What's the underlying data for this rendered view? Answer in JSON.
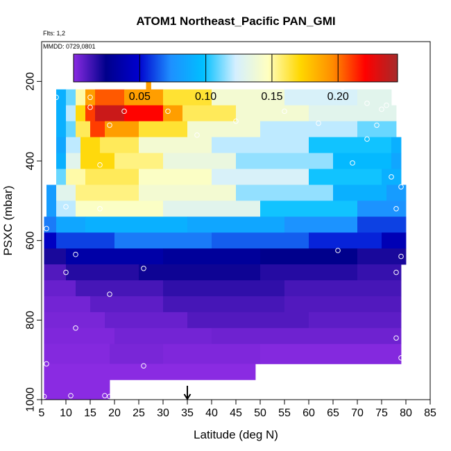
{
  "chart_data": {
    "type": "heatmap",
    "title": "ATOM1 Northeast_Pacific PAN_GMI",
    "annotations": [
      "Flts: 1,2",
      "MMDD: 0729,0801"
    ],
    "xlabel": "Latitude (deg N)",
    "ylabel": "PSXC (mbar)",
    "xlim": [
      5,
      85
    ],
    "ylim": [
      1000,
      100
    ],
    "xticks": [
      "5",
      "10",
      "15",
      "20",
      "25",
      "30",
      "35",
      "40",
      "45",
      "50",
      "55",
      "60",
      "65",
      "70",
      "75",
      "80",
      "85"
    ],
    "yticks": [
      "200",
      "400",
      "600",
      "800",
      "1000"
    ],
    "colorbar": {
      "range": [
        0.0,
        0.245
      ],
      "ticks": [
        "0.05",
        "0.10",
        "0.15",
        "0.20"
      ],
      "colors": [
        "#8a2be2",
        "#00008b",
        "#0000cd",
        "#1e90ff",
        "#00bfff",
        "#d4efff",
        "#ffffc0",
        "#ffd700",
        "#ff8c00",
        "#ff0000",
        "#a52a2a"
      ]
    },
    "marker": {
      "latitude": 35,
      "symbol": "down-arrow"
    },
    "rows": [
      {
        "p_top": 165,
        "p_bot": 180,
        "segments": [
          [
            26.5,
            27.5,
            0.19
          ]
        ]
      },
      {
        "p_top": 180,
        "p_bot": 220,
        "segments": [
          [
            26.5,
            27.5,
            0.19
          ]
        ]
      },
      {
        "p_top": 220,
        "p_bot": 260,
        "segments": [
          [
            8,
            10,
            0.09
          ],
          [
            10,
            12,
            0.11
          ],
          [
            12,
            14,
            0.15
          ],
          [
            14,
            16,
            0.19
          ],
          [
            16,
            22,
            0.205
          ],
          [
            22,
            30,
            0.19
          ],
          [
            30,
            40,
            0.165
          ],
          [
            40,
            55,
            0.14
          ],
          [
            55,
            70,
            0.125
          ],
          [
            70,
            77,
            0.13
          ]
        ]
      },
      {
        "p_top": 260,
        "p_bot": 300,
        "segments": [
          [
            8,
            10,
            0.09
          ],
          [
            10,
            12,
            0.12
          ],
          [
            12,
            14,
            0.17
          ],
          [
            14,
            16,
            0.21
          ],
          [
            16,
            22,
            0.235
          ],
          [
            22,
            30,
            0.22
          ],
          [
            30,
            34,
            0.19
          ],
          [
            34,
            45,
            0.16
          ],
          [
            45,
            60,
            0.14
          ],
          [
            60,
            78,
            0.13
          ]
        ]
      },
      {
        "p_top": 300,
        "p_bot": 340,
        "segments": [
          [
            8,
            10,
            0.09
          ],
          [
            10,
            12,
            0.11
          ],
          [
            12,
            15,
            0.16
          ],
          [
            15,
            18,
            0.21
          ],
          [
            18,
            25,
            0.19
          ],
          [
            25,
            35,
            0.165
          ],
          [
            35,
            50,
            0.14
          ],
          [
            50,
            70,
            0.12
          ],
          [
            70,
            78,
            0.11
          ]
        ]
      },
      {
        "p_top": 340,
        "p_bot": 380,
        "segments": [
          [
            8,
            10,
            0.085
          ],
          [
            10,
            13,
            0.12
          ],
          [
            13,
            17,
            0.17
          ],
          [
            17,
            25,
            0.16
          ],
          [
            25,
            40,
            0.14
          ],
          [
            40,
            60,
            0.12
          ],
          [
            60,
            77,
            0.1
          ],
          [
            77,
            79,
            0.09
          ]
        ]
      },
      {
        "p_top": 380,
        "p_bot": 420,
        "segments": [
          [
            8,
            10,
            0.09
          ],
          [
            10,
            13,
            0.13
          ],
          [
            13,
            20,
            0.17
          ],
          [
            20,
            30,
            0.155
          ],
          [
            30,
            45,
            0.135
          ],
          [
            45,
            65,
            0.115
          ],
          [
            65,
            77,
            0.095
          ],
          [
            77,
            79,
            0.085
          ]
        ]
      },
      {
        "p_top": 420,
        "p_bot": 460,
        "segments": [
          [
            8,
            10,
            0.11
          ],
          [
            10,
            14,
            0.15
          ],
          [
            14,
            25,
            0.16
          ],
          [
            25,
            40,
            0.145
          ],
          [
            40,
            60,
            0.125
          ],
          [
            60,
            75,
            0.1
          ],
          [
            75,
            79,
            0.09
          ]
        ]
      },
      {
        "p_top": 460,
        "p_bot": 500,
        "segments": [
          [
            6,
            8,
            0.08
          ],
          [
            8,
            12,
            0.13
          ],
          [
            12,
            25,
            0.155
          ],
          [
            25,
            45,
            0.14
          ],
          [
            45,
            65,
            0.115
          ],
          [
            65,
            76,
            0.09
          ],
          [
            76,
            80,
            0.08
          ]
        ]
      },
      {
        "p_top": 500,
        "p_bot": 540,
        "segments": [
          [
            6,
            8,
            0.08
          ],
          [
            8,
            12,
            0.12
          ],
          [
            12,
            30,
            0.145
          ],
          [
            30,
            50,
            0.13
          ],
          [
            50,
            70,
            0.1
          ],
          [
            70,
            80,
            0.075
          ]
        ]
      },
      {
        "p_top": 540,
        "p_bot": 580,
        "segments": [
          [
            5.5,
            8,
            0.07
          ],
          [
            8,
            14,
            0.085
          ],
          [
            14,
            35,
            0.09
          ],
          [
            35,
            55,
            0.085
          ],
          [
            55,
            70,
            0.075
          ],
          [
            70,
            80,
            0.06
          ]
        ]
      },
      {
        "p_top": 580,
        "p_bot": 620,
        "segments": [
          [
            5.5,
            8,
            0.045
          ],
          [
            8,
            20,
            0.06
          ],
          [
            20,
            40,
            0.07
          ],
          [
            40,
            60,
            0.065
          ],
          [
            60,
            75,
            0.055
          ],
          [
            75,
            80,
            0.04
          ]
        ]
      },
      {
        "p_top": 620,
        "p_bot": 660,
        "segments": [
          [
            5.5,
            10,
            0.02
          ],
          [
            10,
            30,
            0.035
          ],
          [
            30,
            50,
            0.03
          ],
          [
            50,
            70,
            0.025
          ],
          [
            70,
            80,
            0.02
          ]
        ]
      },
      {
        "p_top": 660,
        "p_bot": 700,
        "segments": [
          [
            5.5,
            10,
            0.01
          ],
          [
            10,
            25,
            0.018
          ],
          [
            25,
            50,
            0.022
          ],
          [
            50,
            70,
            0.018
          ],
          [
            70,
            79,
            0.015
          ]
        ]
      },
      {
        "p_top": 700,
        "p_bot": 740,
        "segments": [
          [
            5.5,
            12,
            0.006
          ],
          [
            12,
            30,
            0.012
          ],
          [
            30,
            55,
            0.016
          ],
          [
            55,
            79,
            0.012
          ]
        ]
      },
      {
        "p_top": 740,
        "p_bot": 780,
        "segments": [
          [
            5.5,
            15,
            0.004
          ],
          [
            15,
            30,
            0.008
          ],
          [
            30,
            55,
            0.012
          ],
          [
            55,
            79,
            0.01
          ]
        ]
      },
      {
        "p_top": 780,
        "p_bot": 820,
        "segments": [
          [
            5.5,
            18,
            0.003
          ],
          [
            18,
            35,
            0.006
          ],
          [
            35,
            60,
            0.01
          ],
          [
            60,
            79,
            0.008
          ]
        ]
      },
      {
        "p_top": 820,
        "p_bot": 860,
        "segments": [
          [
            5.5,
            20,
            0.002
          ],
          [
            20,
            40,
            0.004
          ],
          [
            40,
            79,
            0.005
          ]
        ]
      },
      {
        "p_top": 860,
        "p_bot": 910,
        "segments": [
          [
            5.5,
            19,
            0.001
          ],
          [
            19,
            30,
            0.003
          ],
          [
            30,
            50,
            0.002
          ],
          [
            50,
            79,
            0.001
          ]
        ]
      },
      {
        "p_top": 910,
        "p_bot": 950,
        "segments": [
          [
            5.5,
            49,
            0.0
          ]
        ]
      },
      {
        "p_top": 950,
        "p_bot": 1000,
        "segments": [
          [
            5.5,
            19,
            0.0
          ]
        ]
      }
    ],
    "points": [
      [
        27.5,
        195
      ],
      [
        8,
        240
      ],
      [
        15,
        240
      ],
      [
        15,
        265
      ],
      [
        22,
        275
      ],
      [
        31,
        275
      ],
      [
        19,
        310
      ],
      [
        37,
        335
      ],
      [
        45,
        300
      ],
      [
        55,
        275
      ],
      [
        62,
        305
      ],
      [
        67,
        215
      ],
      [
        72,
        255
      ],
      [
        75,
        270
      ],
      [
        76,
        260
      ],
      [
        74,
        310
      ],
      [
        72,
        345
      ],
      [
        69,
        405
      ],
      [
        77,
        440
      ],
      [
        79,
        465
      ],
      [
        78,
        520
      ],
      [
        17,
        410
      ],
      [
        10,
        515
      ],
      [
        17,
        520
      ],
      [
        6,
        570
      ],
      [
        12,
        635
      ],
      [
        10,
        680
      ],
      [
        26,
        670
      ],
      [
        19,
        735
      ],
      [
        12,
        820
      ],
      [
        6,
        910
      ],
      [
        26,
        915
      ],
      [
        11,
        990
      ],
      [
        18,
        990
      ],
      [
        19,
        992
      ],
      [
        5.5,
        992
      ],
      [
        66,
        625
      ],
      [
        79,
        640
      ],
      [
        78,
        680
      ],
      [
        78,
        845
      ],
      [
        79,
        895
      ]
    ]
  }
}
